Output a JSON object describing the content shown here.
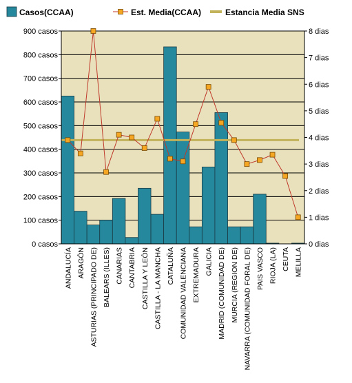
{
  "chart_data": {
    "type": "bar",
    "categories": [
      "ANDALUCÍA",
      "ARAGÓN",
      "ASTURIAS (PRINCIPADO DE)",
      "BALEARS (ILLES)",
      "CANARIAS",
      "CANTABRIA",
      "CASTILLA Y LEÓN",
      "CASTILLA - LA MANCHA",
      "CATALUÑA",
      "COMUNIDAD VALENCIANA",
      "EXTREMADURA",
      "GALICIA",
      "MADRID (COMUNIDAD DE)",
      "MURCIA (REGION DE)",
      "NAVARRA (COMUNIDAD FORAL DE)",
      "PAIS VASCO",
      "RIOJA (LA)",
      "CEUTA",
      "MELILLA"
    ],
    "series": [
      {
        "name": "Casos(CCAA)",
        "kind": "bar",
        "axis": "left",
        "values": [
          625,
          138,
          80,
          100,
          192,
          27,
          235,
          125,
          833,
          473,
          72,
          325,
          555,
          72,
          72,
          210,
          3,
          0,
          3
        ]
      },
      {
        "name": "Est.  Media(CCAA)",
        "kind": "line",
        "axis": "right",
        "values": [
          3.9,
          3.4,
          8.0,
          2.7,
          4.1,
          4.0,
          3.6,
          4.7,
          3.2,
          3.1,
          4.5,
          5.9,
          4.55,
          3.9,
          3.0,
          3.15,
          3.35,
          2.55,
          1.0
        ]
      },
      {
        "name": "Estancia Media SNS",
        "kind": "reference-line",
        "axis": "right",
        "value": 3.9
      }
    ],
    "y_left": {
      "ylim": [
        0,
        900
      ],
      "ticks": [
        0,
        100,
        200,
        300,
        400,
        500,
        600,
        700,
        800,
        900
      ],
      "unit": "casos"
    },
    "y_right": {
      "ylim": [
        0,
        8
      ],
      "ticks": [
        0,
        1,
        2,
        3,
        4,
        5,
        6,
        7,
        8
      ],
      "unit": "dias"
    },
    "grid": true,
    "legend": "top",
    "colors": {
      "bar": "#25889C",
      "line": "#C0392B",
      "marker": "#F5A623",
      "sns": "#C2B25A",
      "plot_bg": "#E8E1BC",
      "grid": "#000000"
    }
  }
}
